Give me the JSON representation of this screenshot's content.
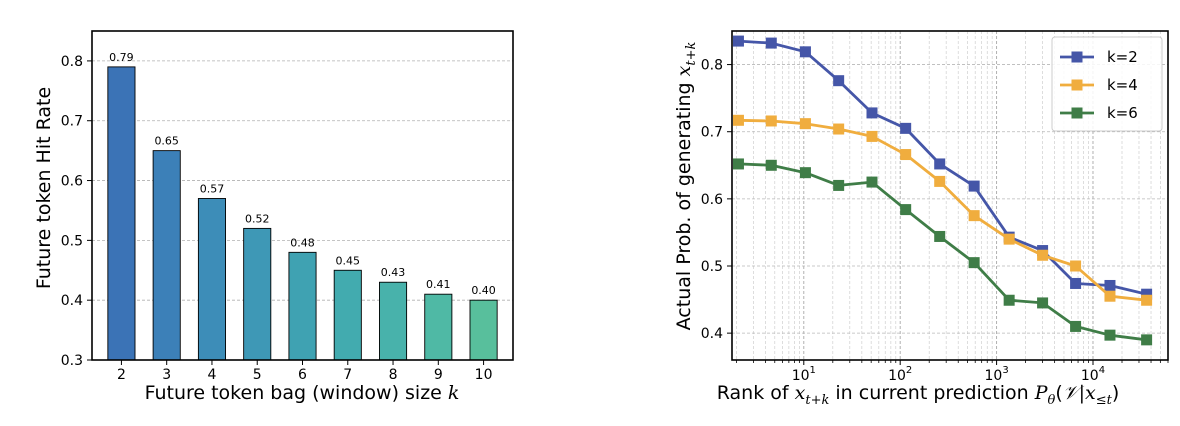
{
  "chart_data": [
    {
      "type": "bar",
      "xlabel": "Future token bag (window) size k",
      "ylabel": "Future token Hit Rate",
      "categories": [
        "2",
        "3",
        "4",
        "5",
        "6",
        "7",
        "8",
        "9",
        "10"
      ],
      "values": [
        0.79,
        0.65,
        0.57,
        0.52,
        0.48,
        0.45,
        0.43,
        0.41,
        0.4
      ],
      "data_labels": [
        "0.79",
        "0.65",
        "0.57",
        "0.52",
        "0.48",
        "0.45",
        "0.43",
        "0.41",
        "0.40"
      ],
      "ylim": [
        0.3,
        0.85
      ],
      "yticks": [
        0.3,
        0.4,
        0.5,
        0.6,
        0.7,
        0.8
      ],
      "ytick_labels": [
        "0.3",
        "0.4",
        "0.5",
        "0.6",
        "0.7",
        "0.8"
      ],
      "grid": "horizontal dashed",
      "colors": [
        "#3b73b6",
        "#3c80b8",
        "#3d8db8",
        "#3e98b6",
        "#3fa2b2",
        "#42abaf",
        "#48b2ab",
        "#4fb9a5",
        "#58bf9c"
      ]
    },
    {
      "type": "line",
      "xscale": "log",
      "xlabel": "Rank of x_{t+k} in current prediction P_θ(𝒱|x_{≤t})",
      "ylabel": "Actual Prob. of generating x_{t+k}",
      "xlim": [
        1.8,
        60000
      ],
      "ylim": [
        0.36,
        0.85
      ],
      "yticks": [
        0.4,
        0.5,
        0.6,
        0.7,
        0.8
      ],
      "ytick_labels": [
        "0.4",
        "0.5",
        "0.6",
        "0.7",
        "0.8"
      ],
      "xticks": [
        10,
        100,
        1000,
        10000
      ],
      "xtick_labels": [
        {
          "base": "10",
          "exp": "1"
        },
        {
          "base": "10",
          "exp": "2"
        },
        {
          "base": "10",
          "exp": "3"
        },
        {
          "base": "10",
          "exp": "4"
        }
      ],
      "grid": "dashed, major and minor on log x",
      "legend_position": "top-right",
      "x": [
        2.1,
        4.6,
        10.4,
        23,
        51,
        114,
        257,
        585,
        1350,
        3000,
        6600,
        15000,
        36000
      ],
      "series": [
        {
          "name": "k=2",
          "color": "#4556a8",
          "values": [
            0.835,
            0.832,
            0.819,
            0.776,
            0.728,
            0.705,
            0.652,
            0.619,
            0.543,
            0.523,
            0.474,
            0.471,
            0.458
          ]
        },
        {
          "name": "k=4",
          "color": "#f0ad3e",
          "values": [
            0.717,
            0.716,
            0.712,
            0.704,
            0.693,
            0.666,
            0.626,
            0.575,
            0.54,
            0.516,
            0.5,
            0.455,
            0.449
          ]
        },
        {
          "name": "k=6",
          "color": "#3f7d47",
          "values": [
            0.652,
            0.65,
            0.639,
            0.62,
            0.625,
            0.584,
            0.544,
            0.505,
            0.449,
            0.445,
            0.41,
            0.397,
            0.39
          ]
        }
      ]
    }
  ]
}
